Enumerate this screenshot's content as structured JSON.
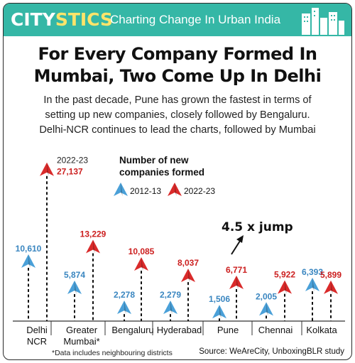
{
  "header": {
    "brand_part1": "CITY",
    "brand_part2": "STICS",
    "tagline": "Charting Change In Urban India",
    "icon": "city-buildings-icon"
  },
  "headline": {
    "line1": "For Every Company Formed In",
    "line2": "Mumbai, Two Come Up In Delhi"
  },
  "subtext": {
    "line1": "In the past decade, Pune has grown the fastest in terms of",
    "line2": "setting up new companies, closely followed by Bengaluru.",
    "line3": "Delhi-NCR continues to lead the charts, followed by Mumbai"
  },
  "colors": {
    "banner": "#35b7a6",
    "brand_accent": "#ffe46a",
    "series_2012": "#4aa0d8",
    "series_2023": "#d92a2a",
    "label_2012": "#3a86c0",
    "label_2023": "#cc1f1f"
  },
  "chart_data": {
    "type": "scatter",
    "title": "Number of new companies formed",
    "categories": [
      "Delhi NCR",
      "Greater Mumbai*",
      "Bengaluru",
      "Hyderabad",
      "Pune",
      "Chennai",
      "Kolkata"
    ],
    "category_lines": [
      [
        "Delhi",
        "NCR"
      ],
      [
        "Greater",
        "Mumbai*"
      ],
      [
        "Bengaluru"
      ],
      [
        "Hyderabad"
      ],
      [
        "Pune"
      ],
      [
        "Chennai"
      ],
      [
        "Kolkata"
      ]
    ],
    "series": [
      {
        "name": "2012-13",
        "values": [
          10610,
          5874,
          2278,
          2279,
          1506,
          2005,
          6393
        ],
        "labels": [
          "10,610",
          "5,874",
          "2,278",
          "2,279",
          "1,506",
          "2,005",
          "6,393"
        ]
      },
      {
        "name": "2022-23",
        "values": [
          27137,
          13229,
          10085,
          8037,
          6771,
          5922,
          5899
        ],
        "labels": [
          "27,137",
          "13,229",
          "10,085",
          "8,037",
          "6,771",
          "5,922",
          "5,899"
        ]
      }
    ],
    "marker": "paper-plane",
    "ylim": [
      0,
      28000
    ],
    "annotations": {
      "top_year_label": "2022-23",
      "jump": "4.5 x jump"
    },
    "legend_placement": "top-center"
  },
  "footnote": "*Data includes neighbouring districts",
  "source": "Source: WeAreCity, UnboxingBLR study"
}
